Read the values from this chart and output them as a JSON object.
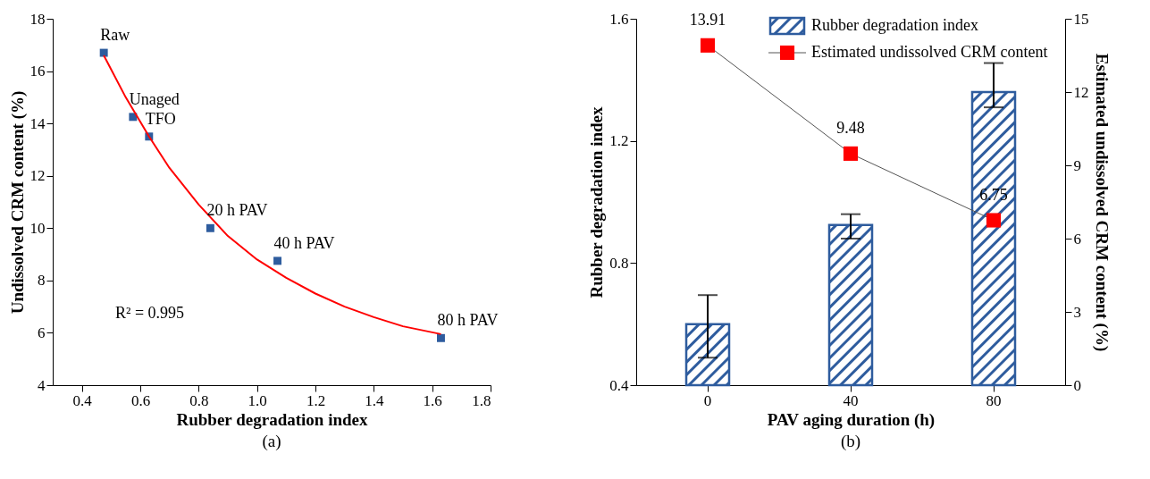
{
  "chart_data": [
    {
      "type": "scatter",
      "xlabel": "Rubber degradation index",
      "ylabel": "Undissolved CRM content (%)",
      "xlim": [
        0.3,
        1.8
      ],
      "xticks": [
        0.4,
        0.6,
        0.8,
        {
          "value": 1,
          "label": "1.0"
        },
        1.2,
        1.4,
        1.6,
        1.8
      ],
      "ylim": [
        4,
        18
      ],
      "yticks": [
        4,
        6,
        8,
        10,
        12,
        14,
        16,
        18
      ],
      "x": [
        0.475,
        0.575,
        0.63,
        0.84,
        1.07,
        1.63
      ],
      "series": [
        {
          "color": "#2e5c9e",
          "marker": "square",
          "values": [
            16.7,
            14.25,
            13.5,
            10.0,
            8.75,
            5.8
          ]
        },
        {
          "type": "line",
          "color": "#ff0000",
          "x": [
            0.475,
            0.55,
            0.63,
            0.7,
            0.8,
            0.9,
            1.0,
            1.1,
            1.2,
            1.3,
            1.4,
            1.5,
            1.63
          ],
          "values": [
            16.6,
            15.0,
            13.5,
            12.3,
            10.9,
            9.7,
            8.8,
            8.1,
            7.5,
            7.0,
            6.6,
            6.25,
            5.95
          ]
        }
      ],
      "annotations": [
        {
          "text": "Raw",
          "x": 0.475,
          "y": 16.7
        },
        {
          "text": "Unaged",
          "x": 0.575,
          "y": 14.25
        },
        {
          "text": "TFO",
          "x": 0.63,
          "y": 13.5
        },
        {
          "text": "20 h PAV",
          "x": 0.84,
          "y": 10.0
        },
        {
          "text": "40 h PAV",
          "x": 1.07,
          "y": 8.75
        },
        {
          "text": "80 h PAV",
          "x": 1.63,
          "y": 5.8
        },
        "R² = 0.995",
        "(a)"
      ]
    },
    {
      "type": "bar",
      "xlabel": "PAV aging duration (h)",
      "ylabel": "Rubber degradation index",
      "y2label": "Estimated undissolved CRM content (%)",
      "categories": [
        "0",
        "40",
        "80"
      ],
      "ylim": [
        0.4,
        1.6
      ],
      "yticks": [
        0.4,
        0.8,
        1.2,
        1.6
      ],
      "y2lim": [
        0,
        15
      ],
      "y2ticks": [
        0,
        3,
        6,
        9,
        12,
        15
      ],
      "legend": "top",
      "marker": "square",
      "series": [
        {
          "name": "Rubber degradation index",
          "type": "bar",
          "color": "#2e5c9e",
          "values": [
            0.6,
            0.925,
            1.36
          ],
          "errors": [
            [
              0.49,
              0.695
            ],
            [
              0.88,
              0.96
            ],
            [
              1.31,
              1.455
            ]
          ]
        },
        {
          "name": "Estimated undissolved CRM content",
          "type": "line",
          "axis": "y2",
          "color": "#ff0000",
          "values": [
            13.91,
            9.48,
            6.75
          ],
          "value_labels": [
            "13.91",
            "9.48",
            "6.75"
          ]
        }
      ],
      "annotations": [
        "(b)"
      ]
    }
  ]
}
